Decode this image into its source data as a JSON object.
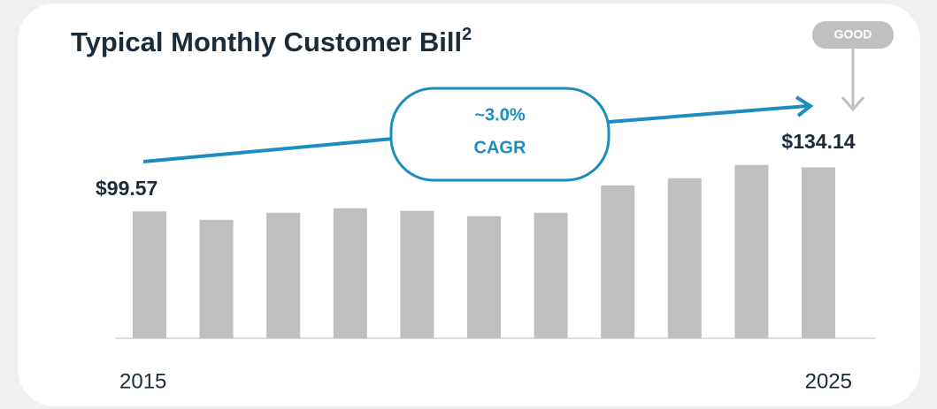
{
  "chart_data": {
    "type": "bar",
    "title": "Typical Monthly Customer Bill",
    "title_superscript": "2",
    "badge": "GOOD",
    "annotation": {
      "rate": "~3.0%",
      "label": "CAGR"
    },
    "categories": [
      "2015",
      null,
      null,
      null,
      null,
      null,
      null,
      null,
      null,
      null,
      "2025"
    ],
    "values": [
      99.57,
      93.0,
      98.6,
      102.0,
      100.0,
      95.8,
      98.6,
      120.0,
      125.6,
      136.0,
      134.14
    ],
    "value_labels": [
      "$99.57",
      null,
      null,
      null,
      null,
      null,
      null,
      null,
      null,
      null,
      "$134.14"
    ],
    "color": "#bfbfbf",
    "ylim": [
      0,
      140
    ]
  }
}
